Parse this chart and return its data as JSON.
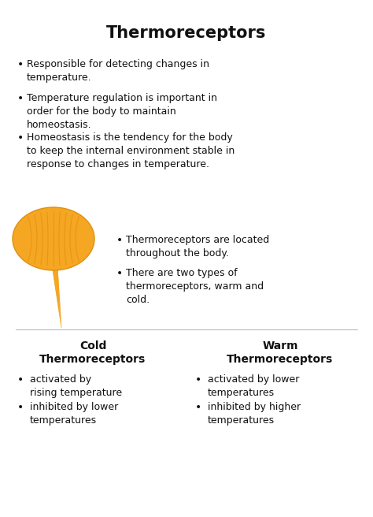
{
  "title": "Thermoreceptors",
  "background_color": "#ffffff",
  "text_color": "#111111",
  "bullet_points_top": [
    "Responsible for detecting changes in\ntemperature.",
    "Temperature regulation is important in\norder for the body to maintain\nhomeostasis.",
    "Homeostasis is the tendency for the body\nto keep the internal environment stable in\nresponse to changes in temperature."
  ],
  "bullet_points_mid": [
    "Thermoreceptors are located\nthroughout the body.",
    "There are two types of\nthermoreceptors, warm and\ncold."
  ],
  "cold_title": "Cold\nThermoreceptors",
  "cold_bullets": [
    "activated by\nrising temperature",
    "inhibited by lower\ntemperatures"
  ],
  "warm_title": "Warm\nThermoreceptors",
  "warm_bullets": [
    "activated by lower\ntemperatures",
    "inhibited by higher\ntemperatures"
  ],
  "orange_color": "#F5A623",
  "orange_mid": "#E09010",
  "orange_dark": "#C07800",
  "title_fontsize": 15,
  "body_fontsize": 9,
  "bold_fontsize": 10
}
